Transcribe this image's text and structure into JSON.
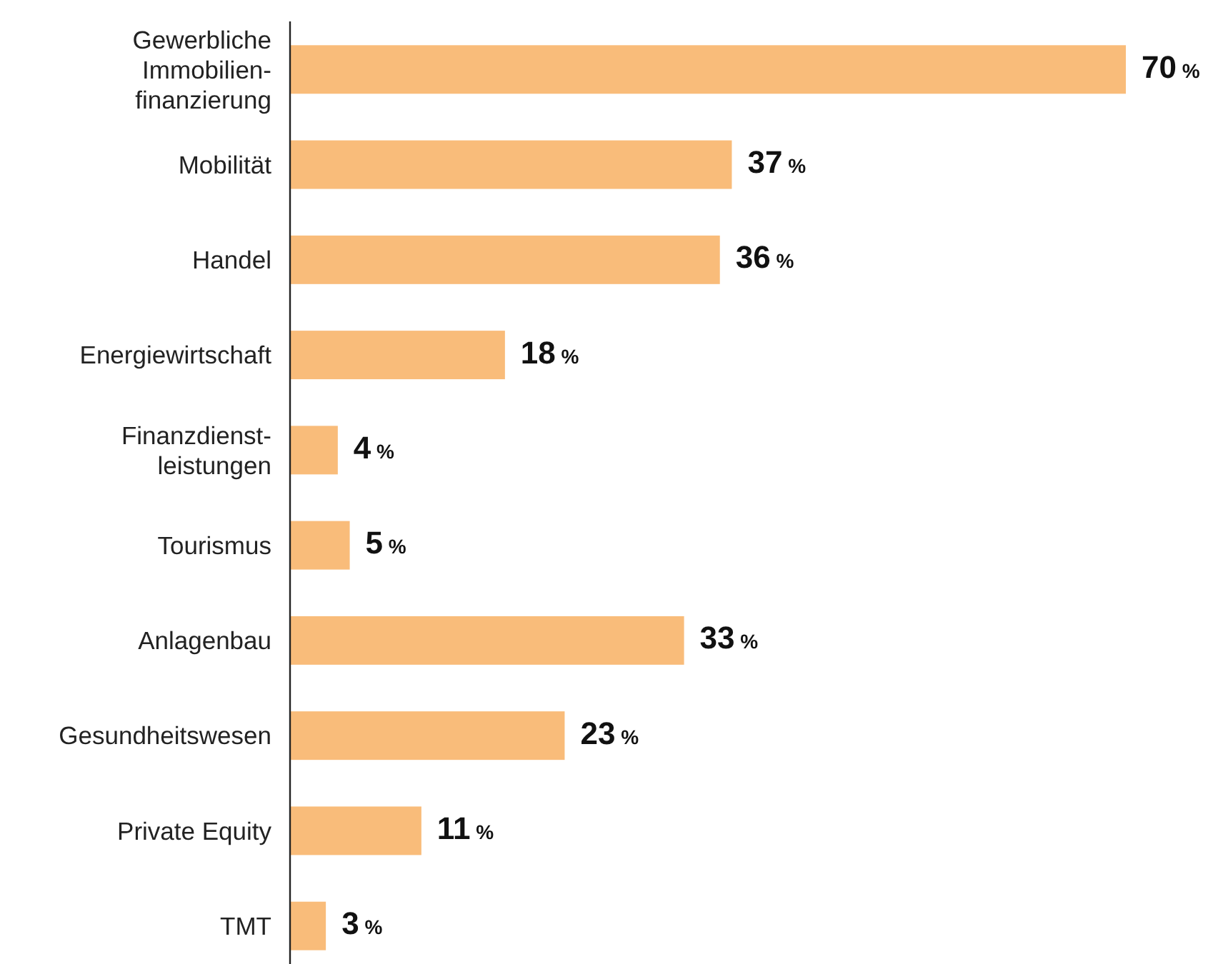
{
  "chart_data": {
    "type": "bar",
    "orientation": "horizontal",
    "categories": [
      "Gewerbliche\nImmobilien-\nfinanzierung",
      "Mobilität",
      "Handel",
      "Energiewirtschaft",
      "Finanzdienst-\nleistungen",
      "Tourismus",
      "Anlagenbau",
      "Gesundheitswesen",
      "Private Equity",
      "TMT"
    ],
    "values": [
      70,
      37,
      36,
      18,
      4,
      5,
      33,
      23,
      11,
      3
    ],
    "value_labels": [
      "70 %",
      "37 %",
      "36 %",
      "18 %",
      "4 %",
      "5 %",
      "33 %",
      "23 %",
      "11 %",
      "3 %"
    ],
    "color": "#f9bc7a"
  }
}
